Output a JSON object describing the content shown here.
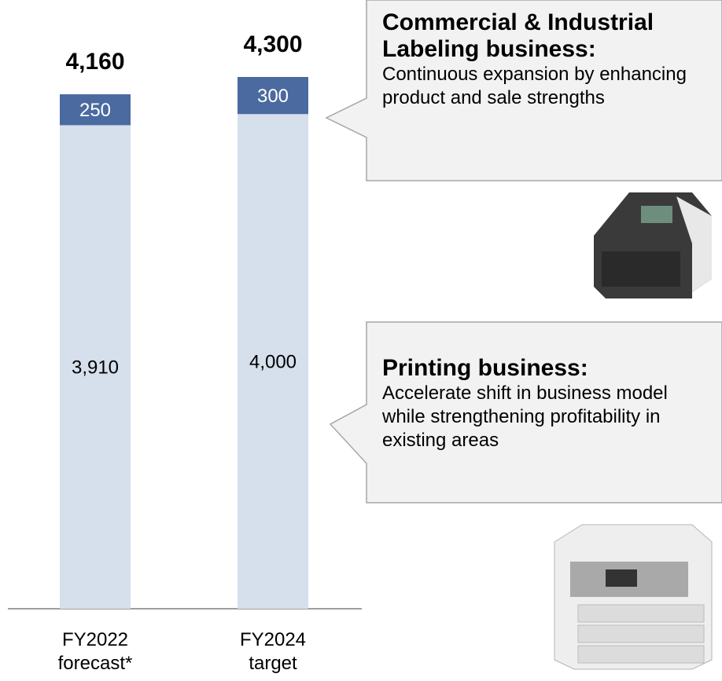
{
  "chart_data": {
    "type": "stacked-bar",
    "categories": [
      "FY2022 forecast*",
      "FY2024 target"
    ],
    "series": [
      {
        "color": "#d6dfec",
        "values": [
          3910,
          4000
        ],
        "value_labels": [
          "3,910",
          "4,000"
        ]
      },
      {
        "color": "#4a6aa0",
        "values": [
          250,
          300
        ]
      }
    ],
    "totals": [
      4160,
      4300
    ],
    "total_labels": [
      "4,160",
      "4,300"
    ],
    "annotations": [
      {
        "title": "Commercial & Industrial Labeling business:",
        "body": "Continuous expansion by enhancing product and sale strengths"
      },
      {
        "title": "Printing business:",
        "body": "Accelerate shift in business model while strengthening profitability in existing areas"
      }
    ]
  }
}
